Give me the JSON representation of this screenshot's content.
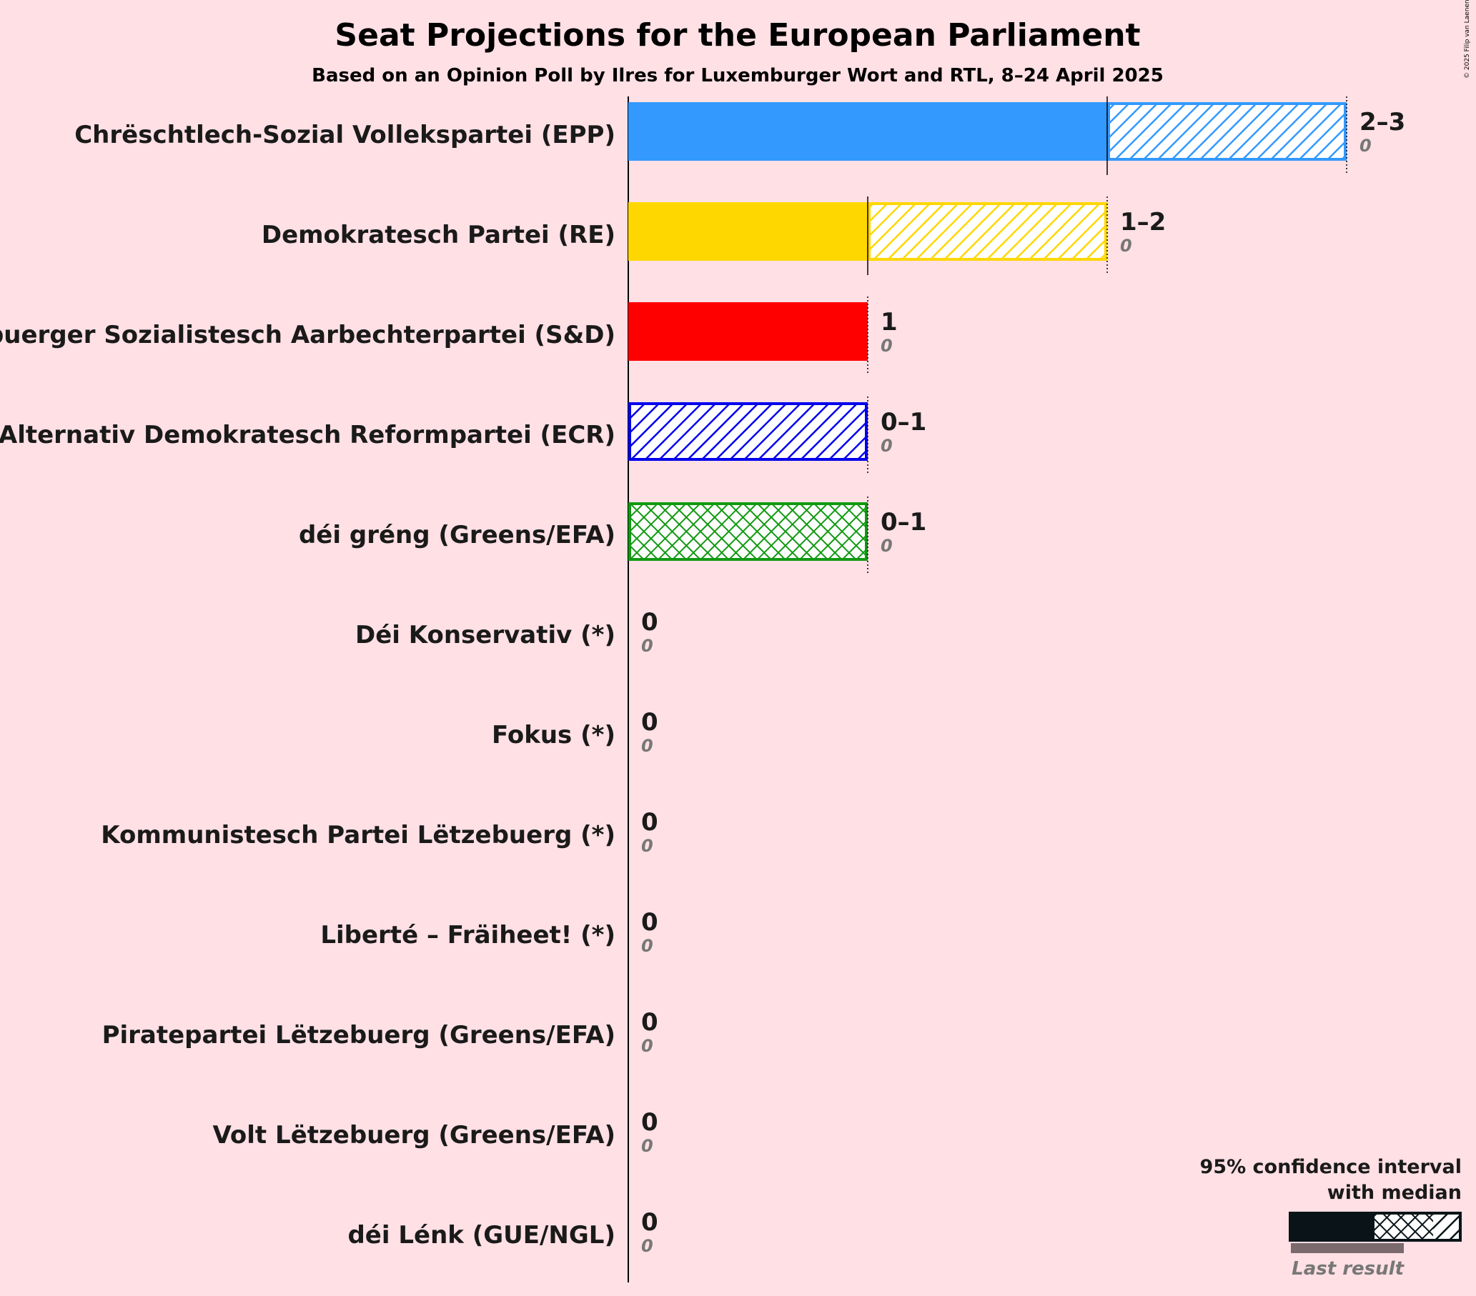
{
  "chart_data": {
    "type": "bar",
    "title": "Seat Projections for the European Parliament",
    "subtitle": "Based on an Opinion Poll by Ilres for Luxemburger Wort and RTL, 8–24 April 2025",
    "copyright": "© 2025 Filip van Laenen",
    "xlim": [
      0,
      3
    ],
    "parties": [
      {
        "name": "Chrëschtlech-Sozial Vollekspartei (EPP)",
        "color": "#3399FF",
        "low": 2,
        "median": 2,
        "high": 3,
        "last": 0,
        "range_label": "2–3",
        "last_label": "0"
      },
      {
        "name": "Demokratesch Partei (RE)",
        "color": "#FFD700",
        "low": 1,
        "median": 1,
        "high": 2,
        "last": 0,
        "range_label": "1–2",
        "last_label": "0"
      },
      {
        "name": "Lëtzebuerger Sozialistesch Aarbechterpartei (S&D)",
        "color": "#FF0000",
        "low": 1,
        "median": 1,
        "high": 1,
        "last": 0,
        "range_label": "1",
        "last_label": "0"
      },
      {
        "name": "Alternativ Demokratesch Reformpartei (ECR)",
        "color": "#0000EE",
        "low": 0,
        "median": 0,
        "high": 1,
        "last": 0,
        "range_label": "0–1",
        "last_label": "0"
      },
      {
        "name": "déi gréng (Greens/EFA)",
        "color": "#119911",
        "low": 0,
        "median": 1,
        "high": 1,
        "last": 0,
        "range_label": "0–1",
        "last_label": "0"
      },
      {
        "name": "Déi Konservativ (*)",
        "color": "#888888",
        "low": 0,
        "median": 0,
        "high": 0,
        "last": 0,
        "range_label": "0",
        "last_label": "0"
      },
      {
        "name": "Fokus (*)",
        "color": "#888888",
        "low": 0,
        "median": 0,
        "high": 0,
        "last": 0,
        "range_label": "0",
        "last_label": "0"
      },
      {
        "name": "Kommunistesch Partei Lëtzebuerg (*)",
        "color": "#888888",
        "low": 0,
        "median": 0,
        "high": 0,
        "last": 0,
        "range_label": "0",
        "last_label": "0"
      },
      {
        "name": "Liberté – Fräiheet! (*)",
        "color": "#888888",
        "low": 0,
        "median": 0,
        "high": 0,
        "last": 0,
        "range_label": "0",
        "last_label": "0"
      },
      {
        "name": "Piratepartei Lëtzebuerg (Greens/EFA)",
        "color": "#888888",
        "low": 0,
        "median": 0,
        "high": 0,
        "last": 0,
        "range_label": "0",
        "last_label": "0"
      },
      {
        "name": "Volt Lëtzebuerg (Greens/EFA)",
        "color": "#888888",
        "low": 0,
        "median": 0,
        "high": 0,
        "last": 0,
        "range_label": "0",
        "last_label": "0"
      },
      {
        "name": "déi Lénk (GUE/NGL)",
        "color": "#888888",
        "low": 0,
        "median": 0,
        "high": 0,
        "last": 0,
        "range_label": "0",
        "last_label": "0"
      }
    ],
    "legend": {
      "line1": "95% confidence interval",
      "line2": "with median",
      "last_result": "Last result",
      "placement": "bottom-right"
    }
  }
}
